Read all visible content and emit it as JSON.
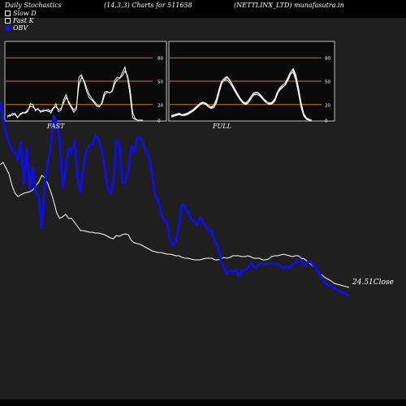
{
  "header": {
    "left": "Daily Stochastics",
    "params": "(14,3,3) Charts for 511658",
    "company": "(NETTLINX_LTD) munafasutra.in"
  },
  "legend": {
    "slow_d": "Slow  D",
    "fast_k": "Fast K",
    "obv": "OBV"
  },
  "colors": {
    "background": "#000000",
    "plot_bg": "#1f1f1f",
    "panel_bg": "#0a0a0a",
    "orange_line": "#cc7a1a",
    "obv_line": "#1010d8",
    "price_line": "#ffffff"
  },
  "close_label": "24.51Close",
  "chart_data": {
    "type": "line",
    "panels": [
      {
        "name": "FAST",
        "ylim": [
          0,
          100
        ],
        "yticks": [
          "80",
          "50",
          "20",
          "0"
        ],
        "reference_lines": [
          80,
          50,
          20
        ],
        "grid": false,
        "series": [
          {
            "values": [
              4,
              7,
              6,
              9,
              3,
              8,
              10,
              9,
              11,
              21,
              20,
              12,
              15,
              10,
              13,
              12,
              14,
              9,
              15,
              21,
              11,
              13,
              26,
              33,
              22,
              16,
              10,
              14,
              55,
              58,
              49,
              37,
              29,
              26,
              22,
              18,
              17,
              23,
              36,
              37,
              35,
              38,
              51,
              55,
              54,
              61,
              68,
              54,
              32,
              3,
              1,
              0,
              0,
              0
            ]
          },
          {
            "values": [
              6,
              5,
              9,
              7,
              4,
              7,
              9,
              10,
              13,
              18,
              17,
              14,
              14,
              12,
              11,
              13,
              11,
              12,
              16,
              17,
              14,
              15,
              22,
              29,
              24,
              18,
              13,
              17,
              45,
              55,
              51,
              41,
              33,
              28,
              24,
              20,
              18,
              21,
              32,
              36,
              35,
              37,
              47,
              52,
              54,
              57,
              63,
              57,
              40,
              10,
              2,
              0,
              0,
              0
            ]
          }
        ]
      },
      {
        "name": "FULL",
        "ylim": [
          0,
          100
        ],
        "yticks": [
          "80",
          "50",
          "20",
          "0"
        ],
        "reference_lines": [
          80,
          50,
          20
        ],
        "grid": false,
        "series": [
          {
            "values": [
              5,
              6,
              7,
              8,
              6,
              6,
              7,
              9,
              11,
              14,
              17,
              20,
              22,
              21,
              17,
              15,
              16,
              22,
              35,
              47,
              52,
              55,
              51,
              45,
              39,
              32,
              26,
              22,
              20,
              22,
              27,
              33,
              35,
              34,
              30,
              26,
              22,
              20,
              21,
              24,
              33,
              40,
              43,
              45,
              51,
              59,
              64,
              55,
              38,
              19,
              6,
              2,
              0,
              0
            ]
          },
          {
            "values": [
              4,
              5,
              6,
              7,
              6,
              7,
              8,
              10,
              12,
              15,
              18,
              21,
              22,
              20,
              17,
              16,
              18,
              25,
              38,
              48,
              51,
              52,
              48,
              43,
              37,
              31,
              26,
              23,
              21,
              23,
              28,
              32,
              33,
              32,
              29,
              25,
              22,
              21,
              22,
              26,
              34,
              39,
              42,
              46,
              53,
              60,
              61,
              51,
              34,
              16,
              5,
              1,
              0,
              0
            ]
          },
          {
            "values": [
              6,
              7,
              8,
              9,
              7,
              8,
              9,
              11,
              13,
              16,
              19,
              22,
              23,
              22,
              19,
              17,
              19,
              27,
              40,
              50,
              54,
              56,
              52,
              46,
              40,
              34,
              28,
              24,
              22,
              25,
              30,
              35,
              36,
              35,
              31,
              27,
              24,
              22,
              23,
              27,
              36,
              42,
              45,
              48,
              55,
              62,
              66,
              58,
              41,
              22,
              8,
              3,
              1,
              0
            ]
          }
        ]
      }
    ],
    "main": {
      "obv": [
        125,
        146,
        164,
        175,
        185,
        188,
        197,
        175,
        225,
        183,
        233,
        207,
        236,
        243,
        280,
        230,
        201,
        182,
        143,
        151,
        172,
        231,
        205,
        183,
        187,
        173,
        219,
        237,
        205,
        185,
        179,
        178,
        167,
        171,
        184,
        203,
        230,
        238,
        225,
        173,
        178,
        225,
        223,
        211,
        180,
        187,
        169,
        170,
        177,
        188,
        194,
        216,
        241,
        247,
        263,
        271,
        273,
        296,
        302,
        296,
        276,
        252,
        254,
        262,
        269,
        272,
        277,
        267,
        273,
        279,
        285,
        284,
        298,
        302,
        320,
        330,
        336,
        333,
        335,
        332,
        340,
        333,
        333,
        330,
        324,
        329,
        329,
        324,
        324,
        325,
        325,
        324,
        325,
        326,
        328,
        330,
        328,
        330,
        326,
        324,
        320,
        322,
        326,
        323,
        322,
        326,
        331,
        336,
        344,
        349,
        351,
        352,
        355,
        357,
        359,
        360,
        362,
        364
      ],
      "price": [
        203,
        200,
        207,
        214,
        228,
        238,
        242,
        240,
        238,
        237,
        236,
        234,
        229,
        224,
        216,
        219,
        226,
        236,
        248,
        262,
        269,
        267,
        264,
        269,
        269,
        274,
        279,
        284,
        284,
        285,
        286,
        286,
        287,
        287,
        288,
        289,
        291,
        293,
        294,
        290,
        291,
        289,
        288,
        289,
        296,
        299,
        300,
        301,
        303,
        305,
        307,
        309,
        310,
        311,
        311,
        312,
        313,
        313,
        314,
        315,
        315,
        317,
        318,
        318,
        319,
        320,
        320,
        320,
        319,
        318,
        318,
        318,
        320,
        320,
        319,
        317,
        318,
        317,
        315,
        315,
        315,
        316,
        316,
        315,
        316,
        318,
        318,
        318,
        320,
        320,
        319,
        316,
        315,
        315,
        314,
        313,
        314,
        315,
        316,
        315,
        315,
        318,
        319,
        322,
        325,
        328,
        331,
        336,
        339,
        342,
        344,
        346,
        349,
        350,
        351,
        352,
        353,
        354
      ]
    }
  }
}
